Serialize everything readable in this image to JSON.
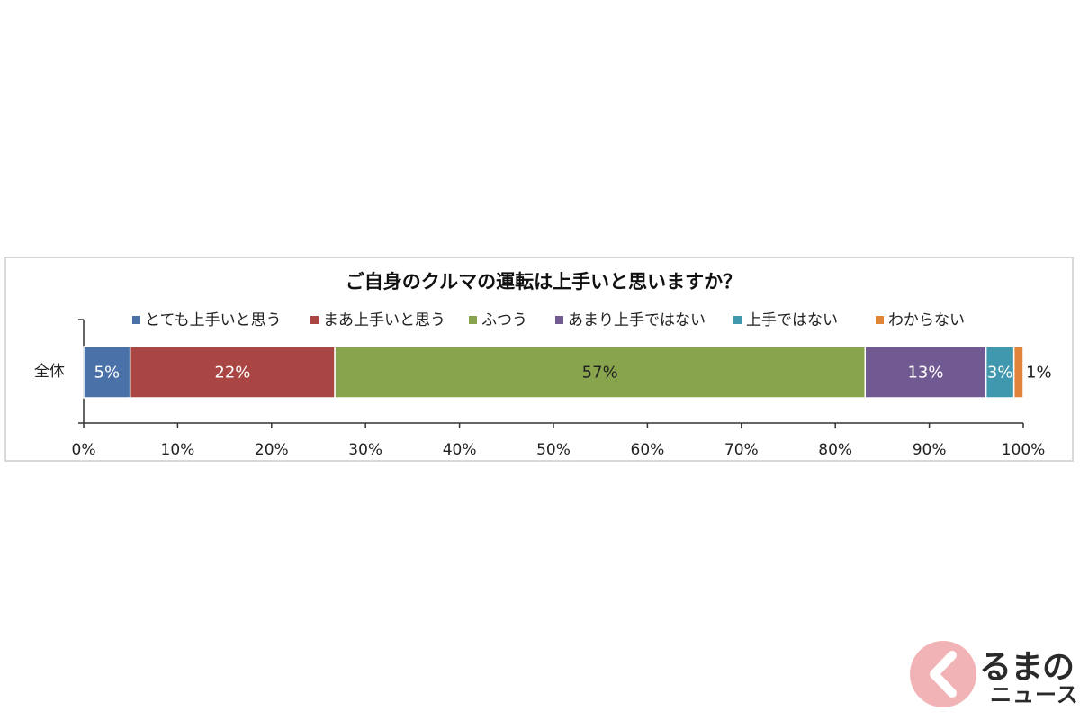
{
  "chart_data": {
    "type": "bar",
    "orientation": "horizontal-stacked-100",
    "title": "ご自身のクルマの運転は上手いと思いますか？",
    "categories": [
      "全体"
    ],
    "series": [
      {
        "name": "とても上手いと思う",
        "values": [
          5
        ],
        "label": "5%",
        "color": "#4a72a8"
      },
      {
        "name": "まあ上手いと思う",
        "values": [
          22
        ],
        "label": "22%",
        "color": "#a94542"
      },
      {
        "name": "ふつう",
        "values": [
          57
        ],
        "label": "57%",
        "color": "#88a44d"
      },
      {
        "name": "あまり上手ではない",
        "values": [
          13
        ],
        "label": "13%",
        "color": "#715a91"
      },
      {
        "name": "上手ではない",
        "values": [
          3
        ],
        "label": "3%",
        "color": "#3f98ad"
      },
      {
        "name": "わからない",
        "values": [
          1
        ],
        "label": "1%",
        "color": "#e0843a"
      }
    ],
    "xlim": [
      0,
      100
    ],
    "x_ticks": [
      "0%",
      "10%",
      "20%",
      "30%",
      "40%",
      "50%",
      "60%",
      "70%",
      "80%",
      "90%",
      "100%"
    ],
    "legend_position": "top",
    "grid": false
  },
  "watermark": {
    "top": "るまの",
    "bottom": "ニュース",
    "color": "#e8747a"
  }
}
